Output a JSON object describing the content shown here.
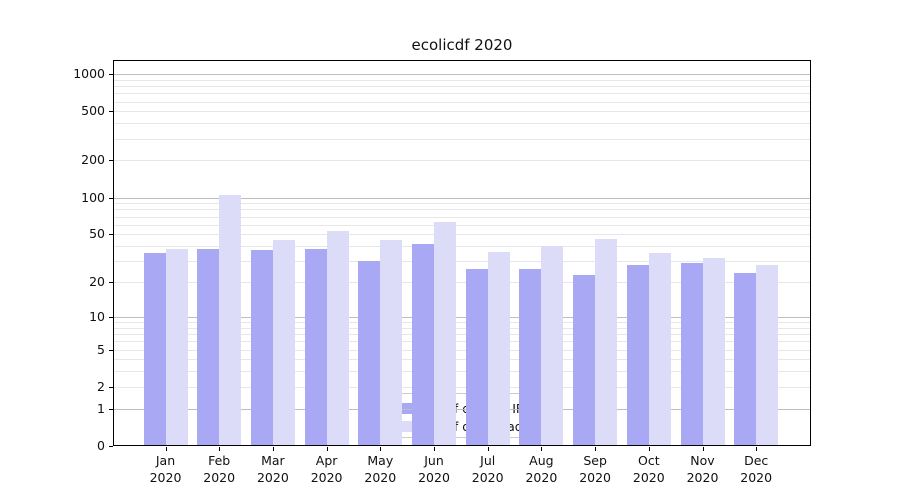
{
  "title": "ecolicdf 2020",
  "chart_data": {
    "type": "bar",
    "title": "ecolicdf 2020",
    "categories": [
      "Jan 2020",
      "Feb 2020",
      "Mar 2020",
      "Apr 2020",
      "May 2020",
      "Jun 2020",
      "Jul 2020",
      "Aug 2020",
      "Sep 2020",
      "Oct 2020",
      "Nov 2020",
      "Dec 2020"
    ],
    "series": [
      {
        "name": "Nb of distinct IPs",
        "color": "#a8a8f5",
        "values": [
          35,
          38,
          37,
          38,
          30,
          42,
          26,
          26,
          23,
          28,
          29,
          24
        ]
      },
      {
        "name": "Nb of downloads",
        "color": "#dcdcf9",
        "values": [
          38,
          105,
          45,
          53,
          45,
          63,
          36,
          40,
          46,
          35,
          32,
          28
        ]
      }
    ],
    "y_ticks": [
      1000,
      500,
      200,
      100,
      50,
      20,
      10,
      5,
      2,
      1,
      0
    ],
    "y_scale": "log1p",
    "ylim": [
      0,
      1300
    ],
    "xlabel": "",
    "ylabel": "",
    "grid": "major-and-minor-horizontal",
    "legend_position": "lower center",
    "colors": {
      "distinct_ips": "#a8a8f5",
      "downloads": "#dcdcf9",
      "major_grid": "#bdbdbd",
      "minor_grid": "#e7e7e7",
      "frame": "#000000",
      "text": "#111111"
    }
  }
}
